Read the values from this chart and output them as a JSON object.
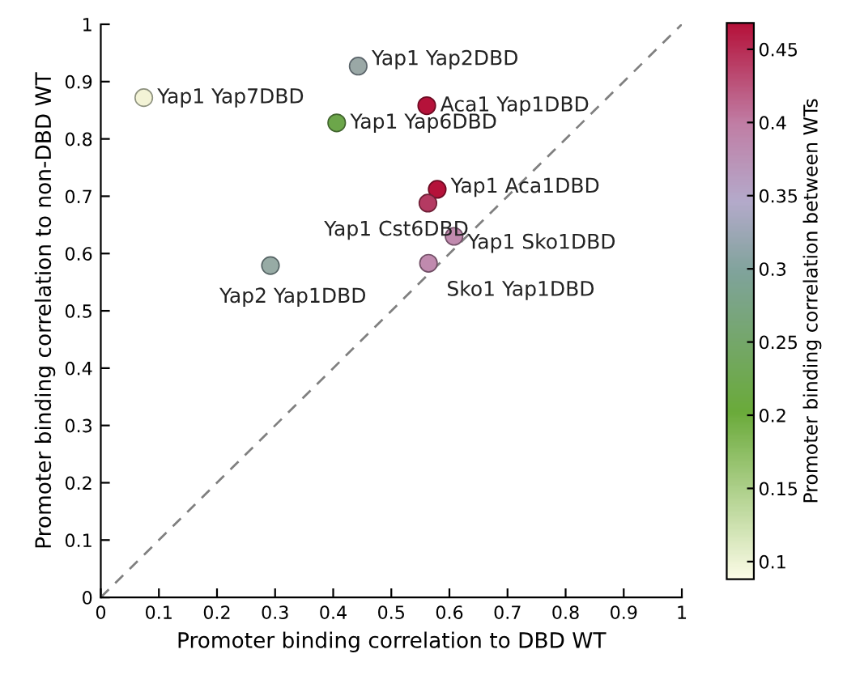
{
  "chart_data": {
    "type": "scatter",
    "xlabel": "Promoter binding correlation to DBD WT",
    "ylabel": "Promoter binding correlation to non-DBD WT",
    "clabel": "Promoter binding correlation between WTs",
    "xlim": [
      0,
      1
    ],
    "ylim": [
      0,
      1
    ],
    "xticks": [
      0,
      0.1,
      0.2,
      0.3,
      0.4,
      0.5,
      0.6,
      0.7,
      0.8,
      0.9,
      1
    ],
    "yticks": [
      0,
      0.1,
      0.2,
      0.3,
      0.4,
      0.5,
      0.6,
      0.7,
      0.8,
      0.9,
      1
    ],
    "clim": [
      0.088,
      0.468
    ],
    "cticks": [
      0.1,
      0.15,
      0.2,
      0.25,
      0.3,
      0.35,
      0.4,
      0.45
    ],
    "grid": false,
    "legend": false,
    "marker": "circle",
    "series": [
      {
        "x": [
          0.074,
          0.443,
          0.561,
          0.406,
          0.579,
          0.563,
          0.608,
          0.564,
          0.292
        ],
        "values": [
          0.872,
          0.927,
          0.858,
          0.828,
          0.712,
          0.688,
          0.63,
          0.583,
          0.579
        ],
        "cvalues": [
          0.1,
          0.32,
          0.467,
          0.222,
          0.467,
          0.446,
          0.39,
          0.39,
          0.31
        ],
        "colors": [
          "#f3f3d6",
          "#9aa8a6",
          "#b5123a",
          "#6ca64a",
          "#b5123a",
          "#b43a62",
          "#c08aae",
          "#c08aae",
          "#97aba5"
        ]
      },
      {
        "type": "line",
        "x": [
          0,
          1
        ],
        "values": [
          0,
          1
        ],
        "color": "#808080",
        "line_style": "dashed",
        "marker": "none"
      }
    ],
    "annotations": [
      {
        "text": "Yap1 Yap7DBD",
        "x": 0.074,
        "y": 0.872
      },
      {
        "text": "Yap1 Yap2DBD",
        "x": 0.443,
        "y": 0.927
      },
      {
        "text": "Aca1 Yap1DBD",
        "x": 0.561,
        "y": 0.858
      },
      {
        "text": "Yap1 Yap6DBD",
        "x": 0.406,
        "y": 0.828
      },
      {
        "text": "Yap1 Aca1DBD",
        "x": 0.579,
        "y": 0.712
      },
      {
        "text": "Yap1 Cst6DBD",
        "x": 0.563,
        "y": 0.688
      },
      {
        "text": "Yap1 Sko1DBD",
        "x": 0.608,
        "y": 0.63
      },
      {
        "text": "Sko1 Yap1DBD",
        "x": 0.564,
        "y": 0.583
      },
      {
        "text": "Yap2 Yap1DBD",
        "x": 0.292,
        "y": 0.579
      }
    ]
  }
}
